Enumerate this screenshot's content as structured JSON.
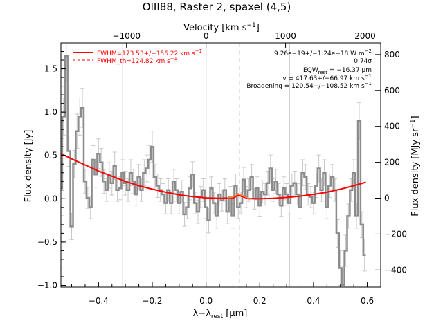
{
  "chart_data": {
    "type": "line",
    "title": "OIII88, Raster 2, spaxel (4,5)",
    "xlabel": "λ−λ",
    "xlabel_sub": "rest",
    "xlabel_unit": " [μm]",
    "ylabel_left": "Flux density [Jy]",
    "ylabel_right": "Flux density [MJy sr",
    "ylabel_right_sup": "−1",
    "ylabel_right_end": "]",
    "top_axis_label": "Velocity [km s",
    "top_axis_label_sup": "−1",
    "top_axis_label_end": "]",
    "xlim": [
      -0.54,
      0.65
    ],
    "ylim": [
      -1.02,
      1.8
    ],
    "right_ylim": [
      -495,
      865
    ],
    "x_ticks": [
      -0.4,
      -0.2,
      0.0,
      0.2,
      0.4,
      0.6
    ],
    "x_tick_labels": [
      "−0.4",
      "−0.2",
      "0.0",
      "0.2",
      "0.4",
      "0.6"
    ],
    "y_ticks": [
      -1.0,
      -0.5,
      0.0,
      0.5,
      1.0,
      1.5
    ],
    "y_tick_labels": [
      "−1.0",
      "−0.5",
      "0.0",
      "0.5",
      "1.0",
      "1.5"
    ],
    "right_ticks": [
      -400,
      -200,
      0,
      200,
      400,
      600,
      800
    ],
    "right_tick_labels": [
      "−400",
      "−200",
      "0",
      "200",
      "400",
      "600",
      "800"
    ],
    "top_ticks": [
      -1000,
      0,
      1000,
      2000
    ],
    "top_tick_labels": [
      "−1000",
      "0",
      "1000",
      "2000"
    ],
    "velocity_per_micron": 3378,
    "vertical_lines_solid": [
      -0.31,
      0.0,
      0.31
    ],
    "vertical_line_dashed": 0.124,
    "legend": [
      {
        "label": "FWHM=173.53+/−156.22 km s",
        "sup": "−1",
        "color": "#ff0000",
        "style": "solid"
      },
      {
        "label": "FWHM_th=124.82 km s",
        "sup": "−1",
        "color": "#ff0000",
        "style": "dashed"
      }
    ],
    "annotations": [
      "9.26e−19+/−1.24e−18 W m",
      "0.74σ",
      "EQW",
      " = −16.37 μm",
      "v = 417.63+/−66.97 km s",
      "Broadening = 120.54+/−108.52 km s"
    ],
    "annotation_superscripts": [
      "−2",
      "−1",
      "−1"
    ],
    "annotation_subscript": "rest",
    "colors": {
      "data": "#8c8c8c",
      "errorbar": "#c8c8c8",
      "fit": "#ff0000",
      "fit_line_component": "#ff8c3c"
    },
    "series": [
      {
        "values": [
          [
            -0.54,
            0.12
          ],
          [
            -0.53,
            0.95
          ],
          [
            -0.52,
            1.65
          ],
          [
            -0.51,
            0.55
          ],
          [
            -0.5,
            -0.32
          ],
          [
            -0.49,
            0.4
          ],
          [
            -0.48,
            0.78
          ],
          [
            -0.47,
            0.95
          ],
          [
            -0.46,
            1.05
          ],
          [
            -0.45,
            0.2
          ],
          [
            -0.44,
            0.01
          ],
          [
            -0.43,
            -0.1
          ],
          [
            -0.42,
            0.45
          ],
          [
            -0.41,
            0.28
          ],
          [
            -0.4,
            0.52
          ],
          [
            -0.39,
            0.42
          ],
          [
            -0.38,
            0.2
          ],
          [
            -0.37,
            0.1
          ],
          [
            -0.36,
            0.27
          ],
          [
            -0.35,
            0.18
          ],
          [
            -0.34,
            0.38
          ],
          [
            -0.33,
            0.1
          ],
          [
            -0.32,
            0.12
          ],
          [
            -0.31,
            0.3
          ],
          [
            -0.3,
            0.18
          ],
          [
            -0.29,
            0.1
          ],
          [
            -0.28,
            0.3
          ],
          [
            -0.27,
            0.2
          ],
          [
            -0.26,
            0.05
          ],
          [
            -0.25,
            0.25
          ],
          [
            -0.24,
            0.1
          ],
          [
            -0.23,
            0.3
          ],
          [
            -0.22,
            0.35
          ],
          [
            -0.21,
            0.45
          ],
          [
            -0.2,
            0.6
          ],
          [
            -0.19,
            0.25
          ],
          [
            -0.18,
            0.15
          ],
          [
            -0.17,
            0.1
          ],
          [
            -0.16,
            0.05
          ],
          [
            -0.15,
            -0.05
          ],
          [
            -0.14,
            0.1
          ],
          [
            -0.13,
            -0.05
          ],
          [
            -0.12,
            0.2
          ],
          [
            -0.11,
            0.1
          ],
          [
            -0.1,
            -0.05
          ],
          [
            -0.09,
            0.08
          ],
          [
            -0.08,
            -0.18
          ],
          [
            -0.07,
            -0.1
          ],
          [
            -0.06,
            0.12
          ],
          [
            -0.05,
            0.28
          ],
          [
            -0.04,
            -0.05
          ],
          [
            -0.03,
            -0.15
          ],
          [
            -0.02,
            0.02
          ],
          [
            -0.01,
            0.1
          ],
          [
            0.0,
            -0.1
          ],
          [
            0.01,
            -0.25
          ],
          [
            0.02,
            0.12
          ],
          [
            0.03,
            -0.05
          ],
          [
            0.04,
            -0.2
          ],
          [
            0.05,
            0.05
          ],
          [
            0.06,
            -0.02
          ],
          [
            0.07,
            0.1
          ],
          [
            0.08,
            -0.15
          ],
          [
            0.09,
            0.02
          ],
          [
            0.1,
            -0.2
          ],
          [
            0.11,
            0.15
          ],
          [
            0.12,
            -0.1
          ],
          [
            0.13,
            -0.05
          ],
          [
            0.14,
            0.22
          ],
          [
            0.15,
            0.02
          ],
          [
            0.16,
            0.1
          ],
          [
            0.17,
            0.25
          ],
          [
            0.18,
            0.0
          ],
          [
            0.19,
            0.12
          ],
          [
            0.2,
            -0.08
          ],
          [
            0.21,
            0.08
          ],
          [
            0.22,
            0.05
          ],
          [
            0.23,
            0.18
          ],
          [
            0.24,
            0.35
          ],
          [
            0.25,
            0.1
          ],
          [
            0.26,
            0.2
          ],
          [
            0.27,
            0.05
          ],
          [
            0.28,
            -0.08
          ],
          [
            0.29,
            0.12
          ],
          [
            0.3,
            0.05
          ],
          [
            0.31,
            -0.05
          ],
          [
            0.32,
            0.15
          ],
          [
            0.33,
            0.18
          ],
          [
            0.34,
            0.05
          ],
          [
            0.35,
            -0.1
          ],
          [
            0.36,
            0.3
          ],
          [
            0.37,
            0.25
          ],
          [
            0.38,
            0.05
          ],
          [
            0.39,
            0.02
          ],
          [
            0.4,
            -0.05
          ],
          [
            0.41,
            0.15
          ],
          [
            0.42,
            0.35
          ],
          [
            0.43,
            0.1
          ],
          [
            0.44,
            0.3
          ],
          [
            0.45,
            -0.1
          ],
          [
            0.46,
            0.15
          ],
          [
            0.47,
            0.25
          ],
          [
            0.48,
            0.1
          ],
          [
            0.49,
            -0.4
          ],
          [
            0.5,
            -0.8
          ],
          [
            0.51,
            -1.0
          ],
          [
            0.52,
            -0.6
          ],
          [
            0.53,
            -0.2
          ],
          [
            0.54,
            0.1
          ],
          [
            0.55,
            0.3
          ],
          [
            0.56,
            -0.2
          ],
          [
            0.57,
            0.9
          ],
          [
            0.58,
            -0.3
          ],
          [
            0.59,
            -0.65
          ]
        ]
      },
      {
        "values": [
          [
            -0.54,
            0.52
          ],
          [
            -0.5,
            0.46
          ],
          [
            -0.45,
            0.39
          ],
          [
            -0.4,
            0.32
          ],
          [
            -0.35,
            0.26
          ],
          [
            -0.3,
            0.2
          ],
          [
            -0.25,
            0.15
          ],
          [
            -0.2,
            0.11
          ],
          [
            -0.15,
            0.075
          ],
          [
            -0.1,
            0.045
          ],
          [
            -0.05,
            0.025
          ],
          [
            0.0,
            0.01
          ],
          [
            0.05,
            0.005
          ],
          [
            0.1,
            0.01
          ],
          [
            0.12,
            0.04
          ],
          [
            0.14,
            0.02
          ],
          [
            0.16,
            0.0
          ],
          [
            0.2,
            0.0
          ],
          [
            0.25,
            0.005
          ],
          [
            0.3,
            0.015
          ],
          [
            0.35,
            0.03
          ],
          [
            0.4,
            0.05
          ],
          [
            0.45,
            0.075
          ],
          [
            0.5,
            0.11
          ],
          [
            0.55,
            0.15
          ],
          [
            0.595,
            0.19
          ]
        ]
      }
    ]
  }
}
